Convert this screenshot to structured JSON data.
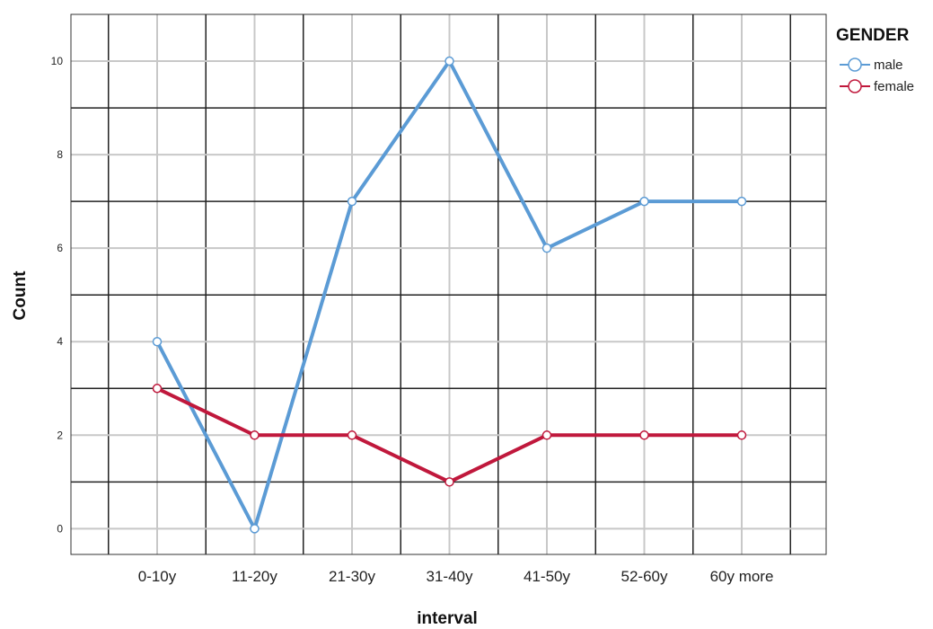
{
  "chart_data": {
    "type": "line",
    "xlabel": "interval",
    "ylabel": "Count",
    "categories": [
      "0-10y",
      "11-20y",
      "21-30y",
      "31-40y",
      "41-50y",
      "52-60y",
      "60y more"
    ],
    "y_ticks": [
      0,
      2,
      4,
      6,
      8,
      10
    ],
    "ylim": [
      -0.55,
      11.0
    ],
    "grid": true,
    "legend_placement": "top-right",
    "legend": {
      "title": "GENDER",
      "entries": [
        "male",
        "female"
      ]
    },
    "series": [
      {
        "name": "male",
        "color": "#5b9bd5",
        "values": [
          4,
          0,
          7,
          10,
          6,
          7,
          7
        ]
      },
      {
        "name": "female",
        "color": "#c0183c",
        "values": [
          3,
          2,
          2,
          1,
          2,
          2,
          2
        ]
      }
    ]
  }
}
